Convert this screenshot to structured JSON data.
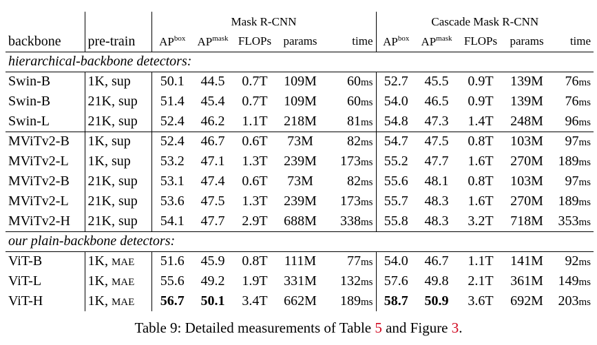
{
  "table": {
    "groups": [
      "Mask R-CNN",
      "Cascade Mask R-CNN"
    ],
    "columns": [
      "backbone",
      "pre-train",
      {
        "text": "AP",
        "sup": "box"
      },
      {
        "text": "AP",
        "sup": "mask"
      },
      "FLOPs",
      "params",
      "time",
      {
        "text": "AP",
        "sup": "box"
      },
      {
        "text": "AP",
        "sup": "mask"
      },
      "FLOPs",
      "params",
      "time"
    ],
    "sections": [
      {
        "title": "hierarchical-backbone detectors:",
        "groups": [
          [
            {
              "cells": [
                "Swin-B",
                "1K, sup",
                "50.1",
                "44.5",
                "0.7T",
                "109M",
                {
                  "num": "60",
                  "unit": "ms"
                },
                "52.7",
                "45.5",
                "0.9T",
                "139M",
                {
                  "num": "76",
                  "unit": "ms"
                }
              ]
            },
            {
              "cells": [
                "Swin-B",
                "21K, sup",
                "51.4",
                "45.4",
                "0.7T",
                "109M",
                {
                  "num": "60",
                  "unit": "ms"
                },
                "54.0",
                "46.5",
                "0.9T",
                "139M",
                {
                  "num": "76",
                  "unit": "ms"
                }
              ]
            },
            {
              "cells": [
                "Swin-L",
                "21K, sup",
                "52.4",
                "46.2",
                "1.1T",
                "218M",
                {
                  "num": "81",
                  "unit": "ms"
                },
                "54.8",
                "47.3",
                "1.4T",
                "248M",
                {
                  "num": "96",
                  "unit": "ms"
                }
              ]
            }
          ],
          [
            {
              "cells": [
                "MViTv2-B",
                "1K, sup",
                "52.4",
                "46.7",
                "0.6T",
                "73M",
                {
                  "num": "82",
                  "unit": "ms"
                },
                "54.7",
                "47.5",
                "0.8T",
                "103M",
                {
                  "num": "97",
                  "unit": "ms"
                }
              ]
            },
            {
              "cells": [
                "MViTv2-L",
                "1K, sup",
                "53.2",
                "47.1",
                "1.3T",
                "239M",
                {
                  "num": "173",
                  "unit": "ms"
                },
                "55.2",
                "47.7",
                "1.6T",
                "270M",
                {
                  "num": "189",
                  "unit": "ms"
                }
              ]
            },
            {
              "cells": [
                "MViTv2-B",
                "21K, sup",
                "53.1",
                "47.4",
                "0.6T",
                "73M",
                {
                  "num": "82",
                  "unit": "ms"
                },
                "55.6",
                "48.1",
                "0.8T",
                "103M",
                {
                  "num": "97",
                  "unit": "ms"
                }
              ]
            },
            {
              "cells": [
                "MViTv2-L",
                "21K, sup",
                "53.6",
                "47.5",
                "1.3T",
                "239M",
                {
                  "num": "173",
                  "unit": "ms"
                },
                "55.7",
                "48.3",
                "1.6T",
                "270M",
                {
                  "num": "189",
                  "unit": "ms"
                }
              ]
            },
            {
              "cells": [
                "MViTv2-H",
                "21K, sup",
                "54.1",
                "47.7",
                "2.9T",
                "688M",
                {
                  "num": "338",
                  "unit": "ms"
                },
                "55.8",
                "48.3",
                "3.2T",
                "718M",
                {
                  "num": "353",
                  "unit": "ms"
                }
              ]
            }
          ]
        ]
      },
      {
        "title": "our plain-backbone detectors:",
        "groups": [
          [
            {
              "cells": [
                "ViT-B",
                {
                  "text": "1K, ",
                  "small": "MAE"
                },
                "51.6",
                "45.9",
                "0.8T",
                "111M",
                {
                  "num": "77",
                  "unit": "ms"
                },
                "54.0",
                "46.7",
                "1.1T",
                "141M",
                {
                  "num": "92",
                  "unit": "ms"
                }
              ]
            },
            {
              "cells": [
                "ViT-L",
                {
                  "text": "1K, ",
                  "small": "MAE"
                },
                "55.6",
                "49.2",
                "1.9T",
                "331M",
                {
                  "num": "132",
                  "unit": "ms"
                },
                "57.6",
                "49.8",
                "2.1T",
                "361M",
                {
                  "num": "149",
                  "unit": "ms"
                }
              ]
            },
            {
              "cells": [
                "ViT-H",
                {
                  "text": "1K, ",
                  "small": "MAE"
                },
                "56.7",
                "50.1",
                "3.4T",
                "662M",
                {
                  "num": "189",
                  "unit": "ms"
                },
                "58.7",
                "50.9",
                "3.6T",
                "692M",
                {
                  "num": "203",
                  "unit": "ms"
                }
              ],
              "bold": [
                2,
                3,
                7,
                8
              ]
            }
          ]
        ]
      }
    ],
    "caption": {
      "prefix": "Table 9: Detailed measurements of Table ",
      "ref1": "5",
      "mid": " and Figure ",
      "ref2": "3",
      "suffix": "."
    }
  }
}
